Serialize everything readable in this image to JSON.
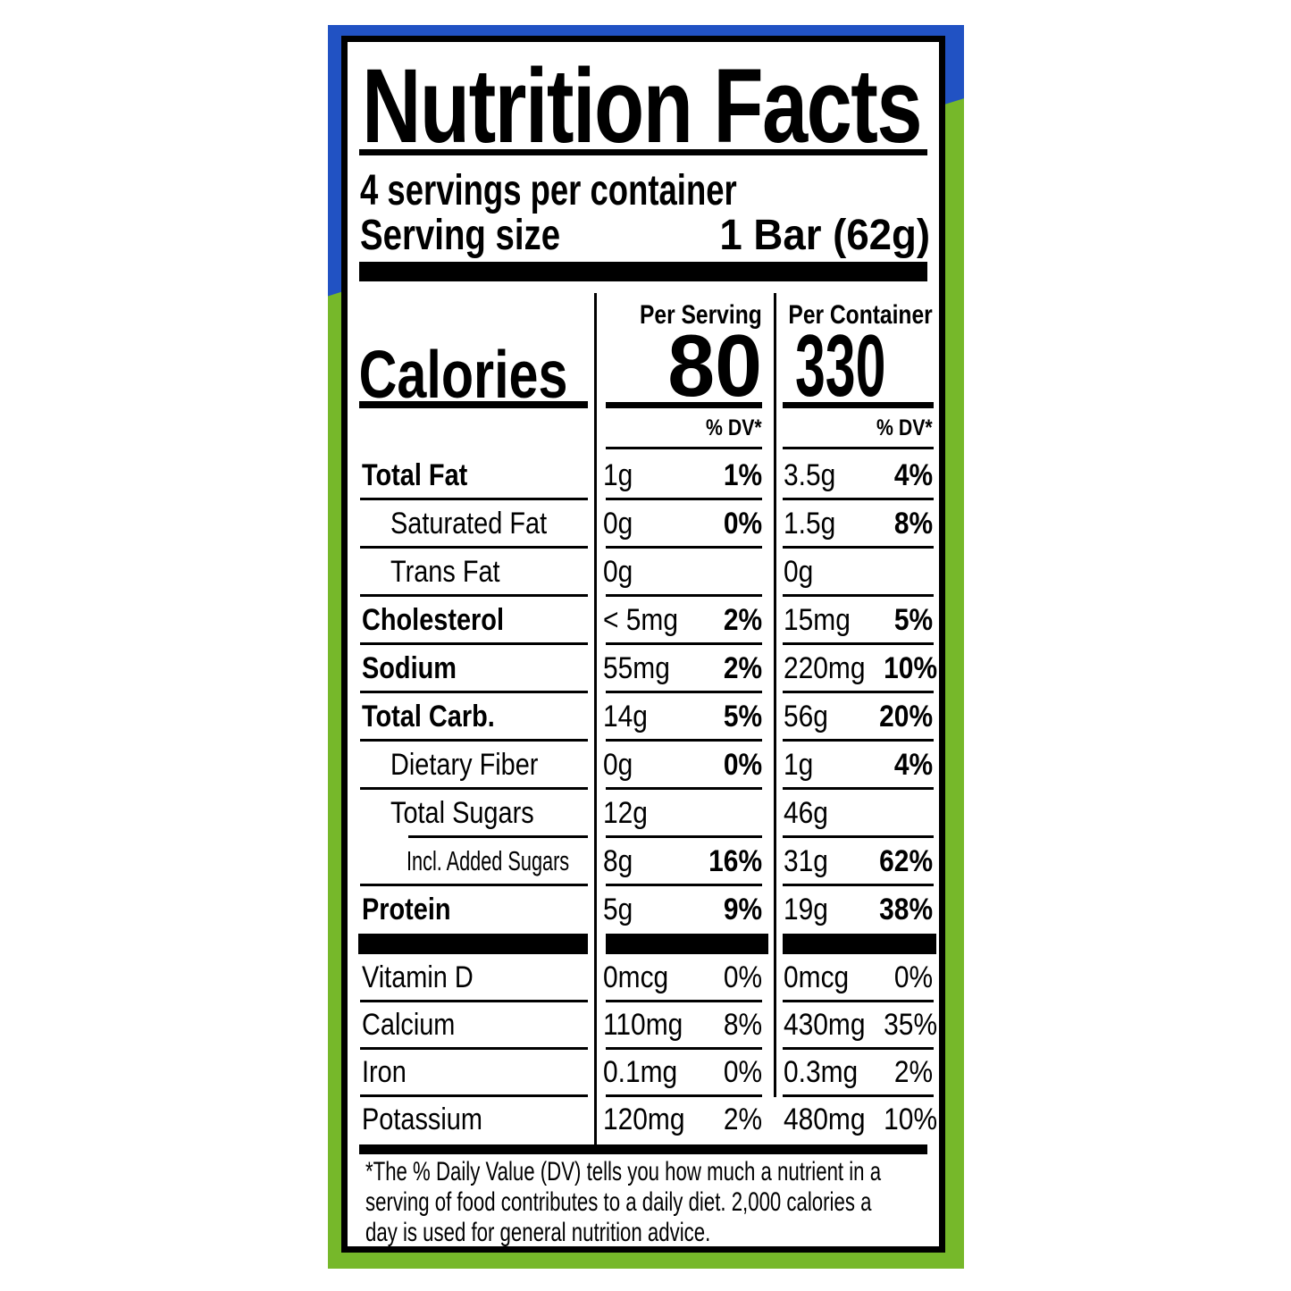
{
  "package": {
    "blue_hex": "#2152c3",
    "green_hex": "#76b82a"
  },
  "label": {
    "title": "Nutrition Facts",
    "servings_per_container": "4 servings per container",
    "serving_size_label": "Serving size",
    "serving_size_value": "1 Bar (62g)",
    "col_headers": {
      "per_serving": "Per Serving",
      "per_container": "Per Container"
    },
    "calories": {
      "label": "Calories",
      "per_serving": "80",
      "per_container": "330"
    },
    "dv_header": "% DV*",
    "rows": [
      {
        "name": "Total Fat",
        "bold": true,
        "indent": 0,
        "cond": false,
        "ps_amt": "1g",
        "ps_dv": "1%",
        "pc_amt": "3.5g",
        "pc_dv": "4%",
        "rule": "full"
      },
      {
        "name": "Saturated Fat",
        "bold": false,
        "indent": 1,
        "cond": false,
        "ps_amt": "0g",
        "ps_dv": "0%",
        "pc_amt": "1.5g",
        "pc_dv": "8%",
        "rule": "full"
      },
      {
        "name": "Trans Fat",
        "bold": false,
        "indent": 1,
        "cond": false,
        "ps_amt": "0g",
        "ps_dv": "",
        "pc_amt": "0g",
        "pc_dv": "",
        "rule": "full"
      },
      {
        "name": "Cholesterol",
        "bold": true,
        "indent": 0,
        "cond": false,
        "ps_amt": "< 5mg",
        "ps_dv": "2%",
        "pc_amt": "15mg",
        "pc_dv": "5%",
        "rule": "full"
      },
      {
        "name": "Sodium",
        "bold": true,
        "indent": 0,
        "cond": false,
        "ps_amt": "55mg",
        "ps_dv": "2%",
        "pc_amt": "220mg",
        "pc_dv": "10%",
        "rule": "full"
      },
      {
        "name": "Total Carb.",
        "bold": true,
        "indent": 0,
        "cond": false,
        "ps_amt": "14g",
        "ps_dv": "5%",
        "pc_amt": "56g",
        "pc_dv": "20%",
        "rule": "full"
      },
      {
        "name": "Dietary Fiber",
        "bold": false,
        "indent": 1,
        "cond": false,
        "ps_amt": "0g",
        "ps_dv": "0%",
        "pc_amt": "1g",
        "pc_dv": "4%",
        "rule": "full"
      },
      {
        "name": "Total Sugars",
        "bold": false,
        "indent": 1,
        "cond": false,
        "ps_amt": "12g",
        "ps_dv": "",
        "pc_amt": "46g",
        "pc_dv": "",
        "rule": "indent"
      },
      {
        "name": "Incl. Added Sugars",
        "bold": false,
        "indent": 2,
        "cond": true,
        "ps_amt": "8g",
        "ps_dv": "16%",
        "pc_amt": "31g",
        "pc_dv": "62%",
        "rule": "full"
      },
      {
        "name": "Protein",
        "bold": true,
        "indent": 0,
        "cond": false,
        "ps_amt": "5g",
        "ps_dv": "9%",
        "pc_amt": "19g",
        "pc_dv": "38%",
        "rule": "none"
      }
    ],
    "vitamins": [
      {
        "name": "Vitamin D",
        "bold": false,
        "indent": 0,
        "cond": false,
        "ps_amt": "0mcg",
        "ps_dv": "0%",
        "pc_amt": "0mcg",
        "pc_dv": "0%",
        "rule": "full"
      },
      {
        "name": "Calcium",
        "bold": false,
        "indent": 0,
        "cond": false,
        "ps_amt": "110mg",
        "ps_dv": "8%",
        "pc_amt": "430mg",
        "pc_dv": "35%",
        "rule": "full"
      },
      {
        "name": "Iron",
        "bold": false,
        "indent": 0,
        "cond": false,
        "ps_amt": "0.1mg",
        "ps_dv": "0%",
        "pc_amt": "0.3mg",
        "pc_dv": "2%",
        "rule": "full"
      },
      {
        "name": "Potassium",
        "bold": false,
        "indent": 0,
        "cond": false,
        "ps_amt": "120mg",
        "ps_dv": "2%",
        "pc_amt": "480mg",
        "pc_dv": "10%",
        "rule": "none"
      }
    ],
    "footnote_lines": [
      "*The % Daily Value (DV) tells you how much a nutrient in a",
      "serving of food contributes to a daily diet. 2,000 calories a",
      "day is used for general nutrition advice."
    ]
  }
}
